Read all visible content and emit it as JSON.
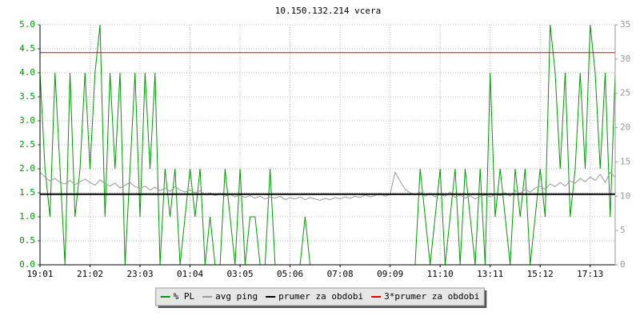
{
  "chart_data": {
    "type": "line",
    "title": "10.150.132.214 vcera",
    "categories": [
      "19:01",
      null,
      null,
      null,
      null,
      null,
      null,
      null,
      null,
      null,
      "21:02",
      null,
      null,
      null,
      null,
      null,
      null,
      null,
      null,
      null,
      "23:03",
      null,
      null,
      null,
      null,
      null,
      null,
      null,
      null,
      null,
      "01:04",
      null,
      null,
      null,
      null,
      null,
      null,
      null,
      null,
      null,
      "03:05",
      null,
      null,
      null,
      null,
      null,
      null,
      null,
      null,
      null,
      "05:06",
      null,
      null,
      null,
      null,
      null,
      null,
      null,
      null,
      null,
      "07:08",
      null,
      null,
      null,
      null,
      null,
      null,
      null,
      null,
      null,
      "09:09",
      null,
      null,
      null,
      null,
      null,
      null,
      null,
      null,
      null,
      "11:10",
      null,
      null,
      null,
      null,
      null,
      null,
      null,
      null,
      null,
      "13:11",
      null,
      null,
      null,
      null,
      null,
      null,
      null,
      null,
      null,
      "15:12",
      null,
      null,
      null,
      null,
      null,
      null,
      null,
      null,
      null,
      "17:13",
      null,
      null,
      null,
      null,
      null
    ],
    "series": [
      {
        "name": "% PL",
        "color": "#009900",
        "axis": "y",
        "values": [
          4,
          2,
          1,
          4,
          2,
          0,
          4,
          1,
          2,
          4,
          2,
          4,
          5,
          1,
          4,
          2,
          4,
          0,
          2,
          4,
          1,
          4,
          2,
          4,
          0,
          2,
          1,
          2,
          0,
          1,
          2,
          1,
          2,
          0,
          1,
          0,
          0,
          2,
          1,
          0,
          2,
          0,
          1,
          1,
          0,
          0,
          2,
          0,
          0,
          0,
          0,
          0,
          0,
          1,
          0,
          0,
          0,
          0,
          0,
          0,
          0,
          0,
          0,
          0,
          0,
          0,
          0,
          0,
          0,
          0,
          0,
          0,
          0,
          0,
          0,
          0,
          2,
          1,
          0,
          1,
          2,
          0,
          1,
          2,
          0,
          2,
          1,
          0,
          2,
          0,
          4,
          1,
          2,
          1,
          0,
          2,
          1,
          2,
          0,
          1,
          2,
          1,
          5,
          4,
          2,
          4,
          1,
          2,
          4,
          2,
          5,
          4,
          2,
          4,
          1,
          4
        ]
      },
      {
        "name": "avg ping",
        "color": "#999999",
        "axis": "y2",
        "values": [
          13.5,
          12.8,
          12.2,
          12.6,
          12.0,
          11.8,
          12.3,
          11.7,
          12.1,
          12.5,
          12.0,
          11.6,
          12.4,
          11.8,
          11.5,
          11.9,
          11.2,
          11.6,
          12.0,
          11.4,
          11.1,
          11.5,
          10.9,
          11.3,
          10.8,
          11.2,
          10.7,
          11.4,
          10.9,
          10.6,
          10.9,
          10.5,
          10.8,
          10.2,
          10.5,
          10.1,
          10.4,
          10.0,
          10.3,
          9.9,
          10.2,
          9.8,
          10.1,
          9.7,
          10.0,
          9.6,
          9.9,
          9.7,
          10.0,
          9.5,
          9.8,
          9.6,
          9.9,
          9.5,
          9.8,
          9.6,
          9.4,
          9.7,
          9.5,
          9.8,
          9.6,
          9.9,
          9.7,
          10.0,
          9.8,
          10.2,
          9.9,
          10.1,
          10.4,
          10.0,
          10.3,
          13.5,
          12.2,
          11.0,
          10.5,
          10.2,
          10.6,
          10.0,
          10.4,
          9.9,
          10.3,
          10.0,
          10.6,
          9.8,
          10.2,
          9.7,
          10.1,
          9.6,
          10.0,
          10.2,
          9.9,
          10.3,
          10.1,
          10.5,
          10.0,
          10.8,
          10.4,
          11.0,
          10.6,
          11.2,
          11.5,
          11.0,
          11.8,
          11.4,
          12.0,
          11.5,
          12.2,
          11.9,
          12.6,
          12.1,
          12.8,
          12.3,
          13.2,
          12.0,
          13.5,
          12.8
        ]
      }
    ],
    "reference_lines": [
      {
        "name": "prumer za obdobi",
        "color": "#000000",
        "value": 1.47
      },
      {
        "name": "3*prumer za obdobi",
        "color": "#dd0000",
        "value": 4.42
      }
    ],
    "ylim": [
      0,
      5
    ],
    "yticks": [
      {
        "value": 0,
        "label": "0.0"
      },
      0.5,
      {
        "value": 1,
        "label": "1.0"
      },
      1.5,
      {
        "value": 2,
        "label": "2.0"
      },
      2.5,
      {
        "value": 3,
        "label": "3.0"
      },
      3.5,
      {
        "value": 4,
        "label": "4.0"
      },
      4.5,
      {
        "value": 5,
        "label": "5.0"
      }
    ],
    "y2lim": [
      0,
      35
    ],
    "y2ticks": [
      0,
      5,
      10,
      15,
      20,
      25,
      30,
      35
    ],
    "grid": true,
    "legend": "bottom"
  }
}
